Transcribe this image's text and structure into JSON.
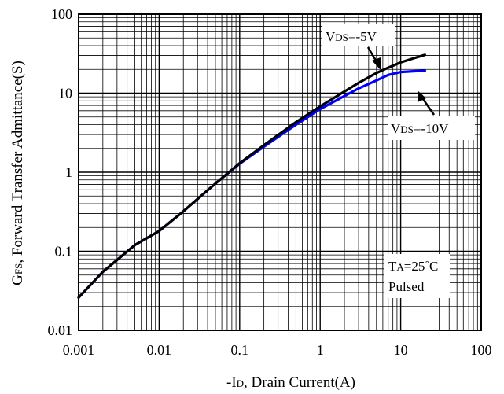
{
  "chart_data": {
    "type": "line",
    "xscale": "log",
    "yscale": "log",
    "xlim": [
      0.001,
      100
    ],
    "ylim": [
      0.01,
      100
    ],
    "grid": true,
    "x_ticks": [
      "0.001",
      "0.01",
      "0.1",
      "1",
      "10",
      "100"
    ],
    "y_ticks": [
      "0.01",
      "0.1",
      "1",
      "10",
      "100"
    ],
    "xlabel_prefix": "-I",
    "xlabel_sub": "D",
    "xlabel_suffix": ", Drain Current(A)",
    "ylabel_prefix": "G",
    "ylabel_sub": "FS",
    "ylabel_suffix": ", Forward Transfer Admittance(S)",
    "series": [
      {
        "color": "#000000",
        "x": [
          0.001,
          0.002,
          0.005,
          0.01,
          0.02,
          0.05,
          0.1,
          0.2,
          0.5,
          1,
          2,
          3,
          5,
          7,
          10,
          15,
          20
        ],
        "y": [
          0.026,
          0.055,
          0.12,
          0.18,
          0.32,
          0.72,
          1.3,
          2.2,
          4.3,
          6.8,
          10.5,
          13.5,
          18,
          21,
          24.5,
          28,
          30.5
        ]
      },
      {
        "color": "#0000ff",
        "x": [
          0.001,
          0.002,
          0.005,
          0.01,
          0.02,
          0.05,
          0.1,
          0.2,
          0.5,
          1,
          2,
          3,
          5,
          7,
          10,
          15,
          20
        ],
        "y": [
          0.026,
          0.055,
          0.12,
          0.18,
          0.32,
          0.72,
          1.28,
          2.1,
          4.0,
          6.3,
          9.2,
          11.5,
          14.5,
          17,
          18.5,
          19,
          19.2
        ]
      }
    ],
    "annotations": [
      {
        "prefix": "V",
        "sub": "DS",
        "suffix": "=-5V",
        "point_x": 5,
        "point_y": 17
      },
      {
        "prefix": "V",
        "sub": "DS",
        "suffix": "=-10V",
        "point_x": 8,
        "point_y": 16.5
      },
      {
        "prefix": "T",
        "sub": "A",
        "suffix": "=25˚C",
        "line2": "Pulsed"
      }
    ]
  }
}
